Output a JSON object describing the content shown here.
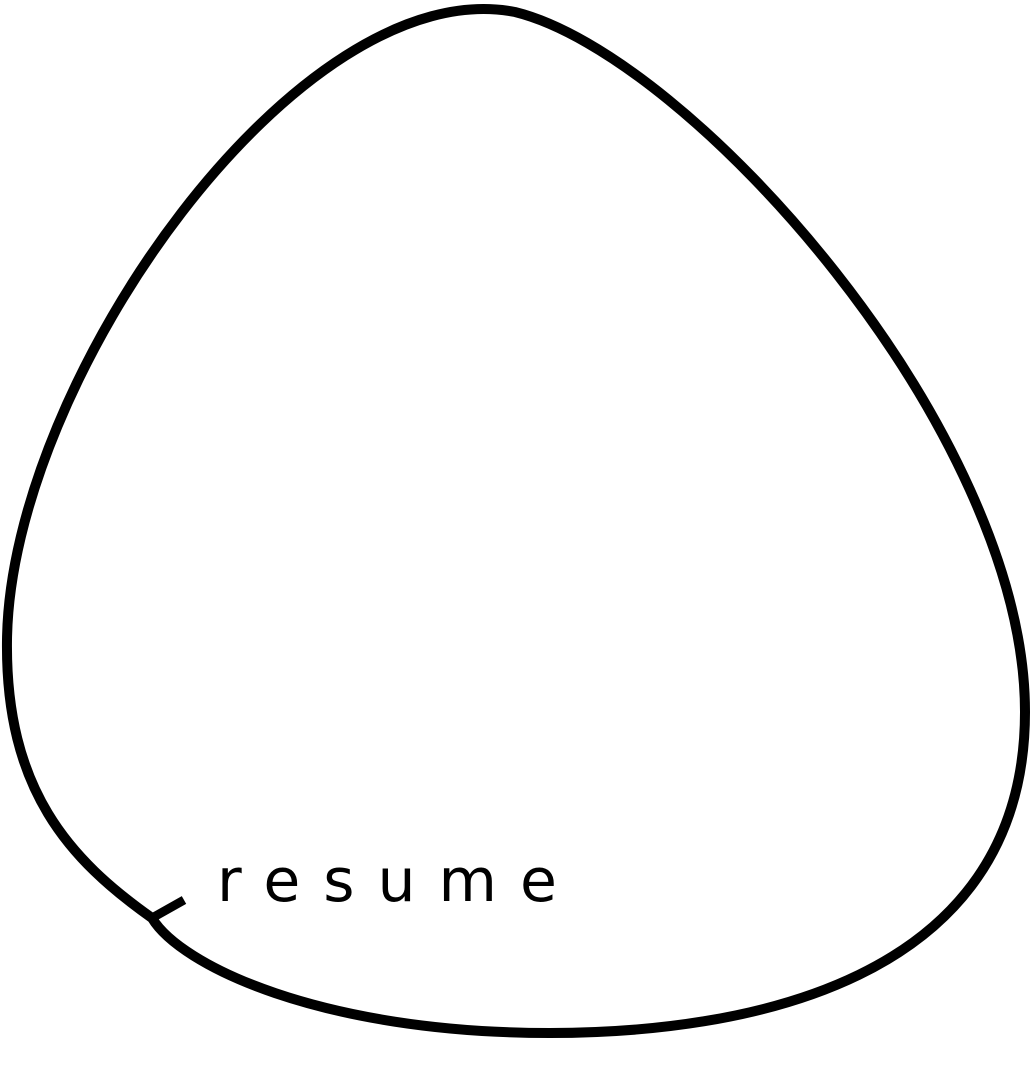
{
  "colors": {
    "background": "#ffffff",
    "ink": "#000000"
  },
  "control": {
    "label": "resume",
    "icon": "rounded-triangle-loop-icon"
  }
}
